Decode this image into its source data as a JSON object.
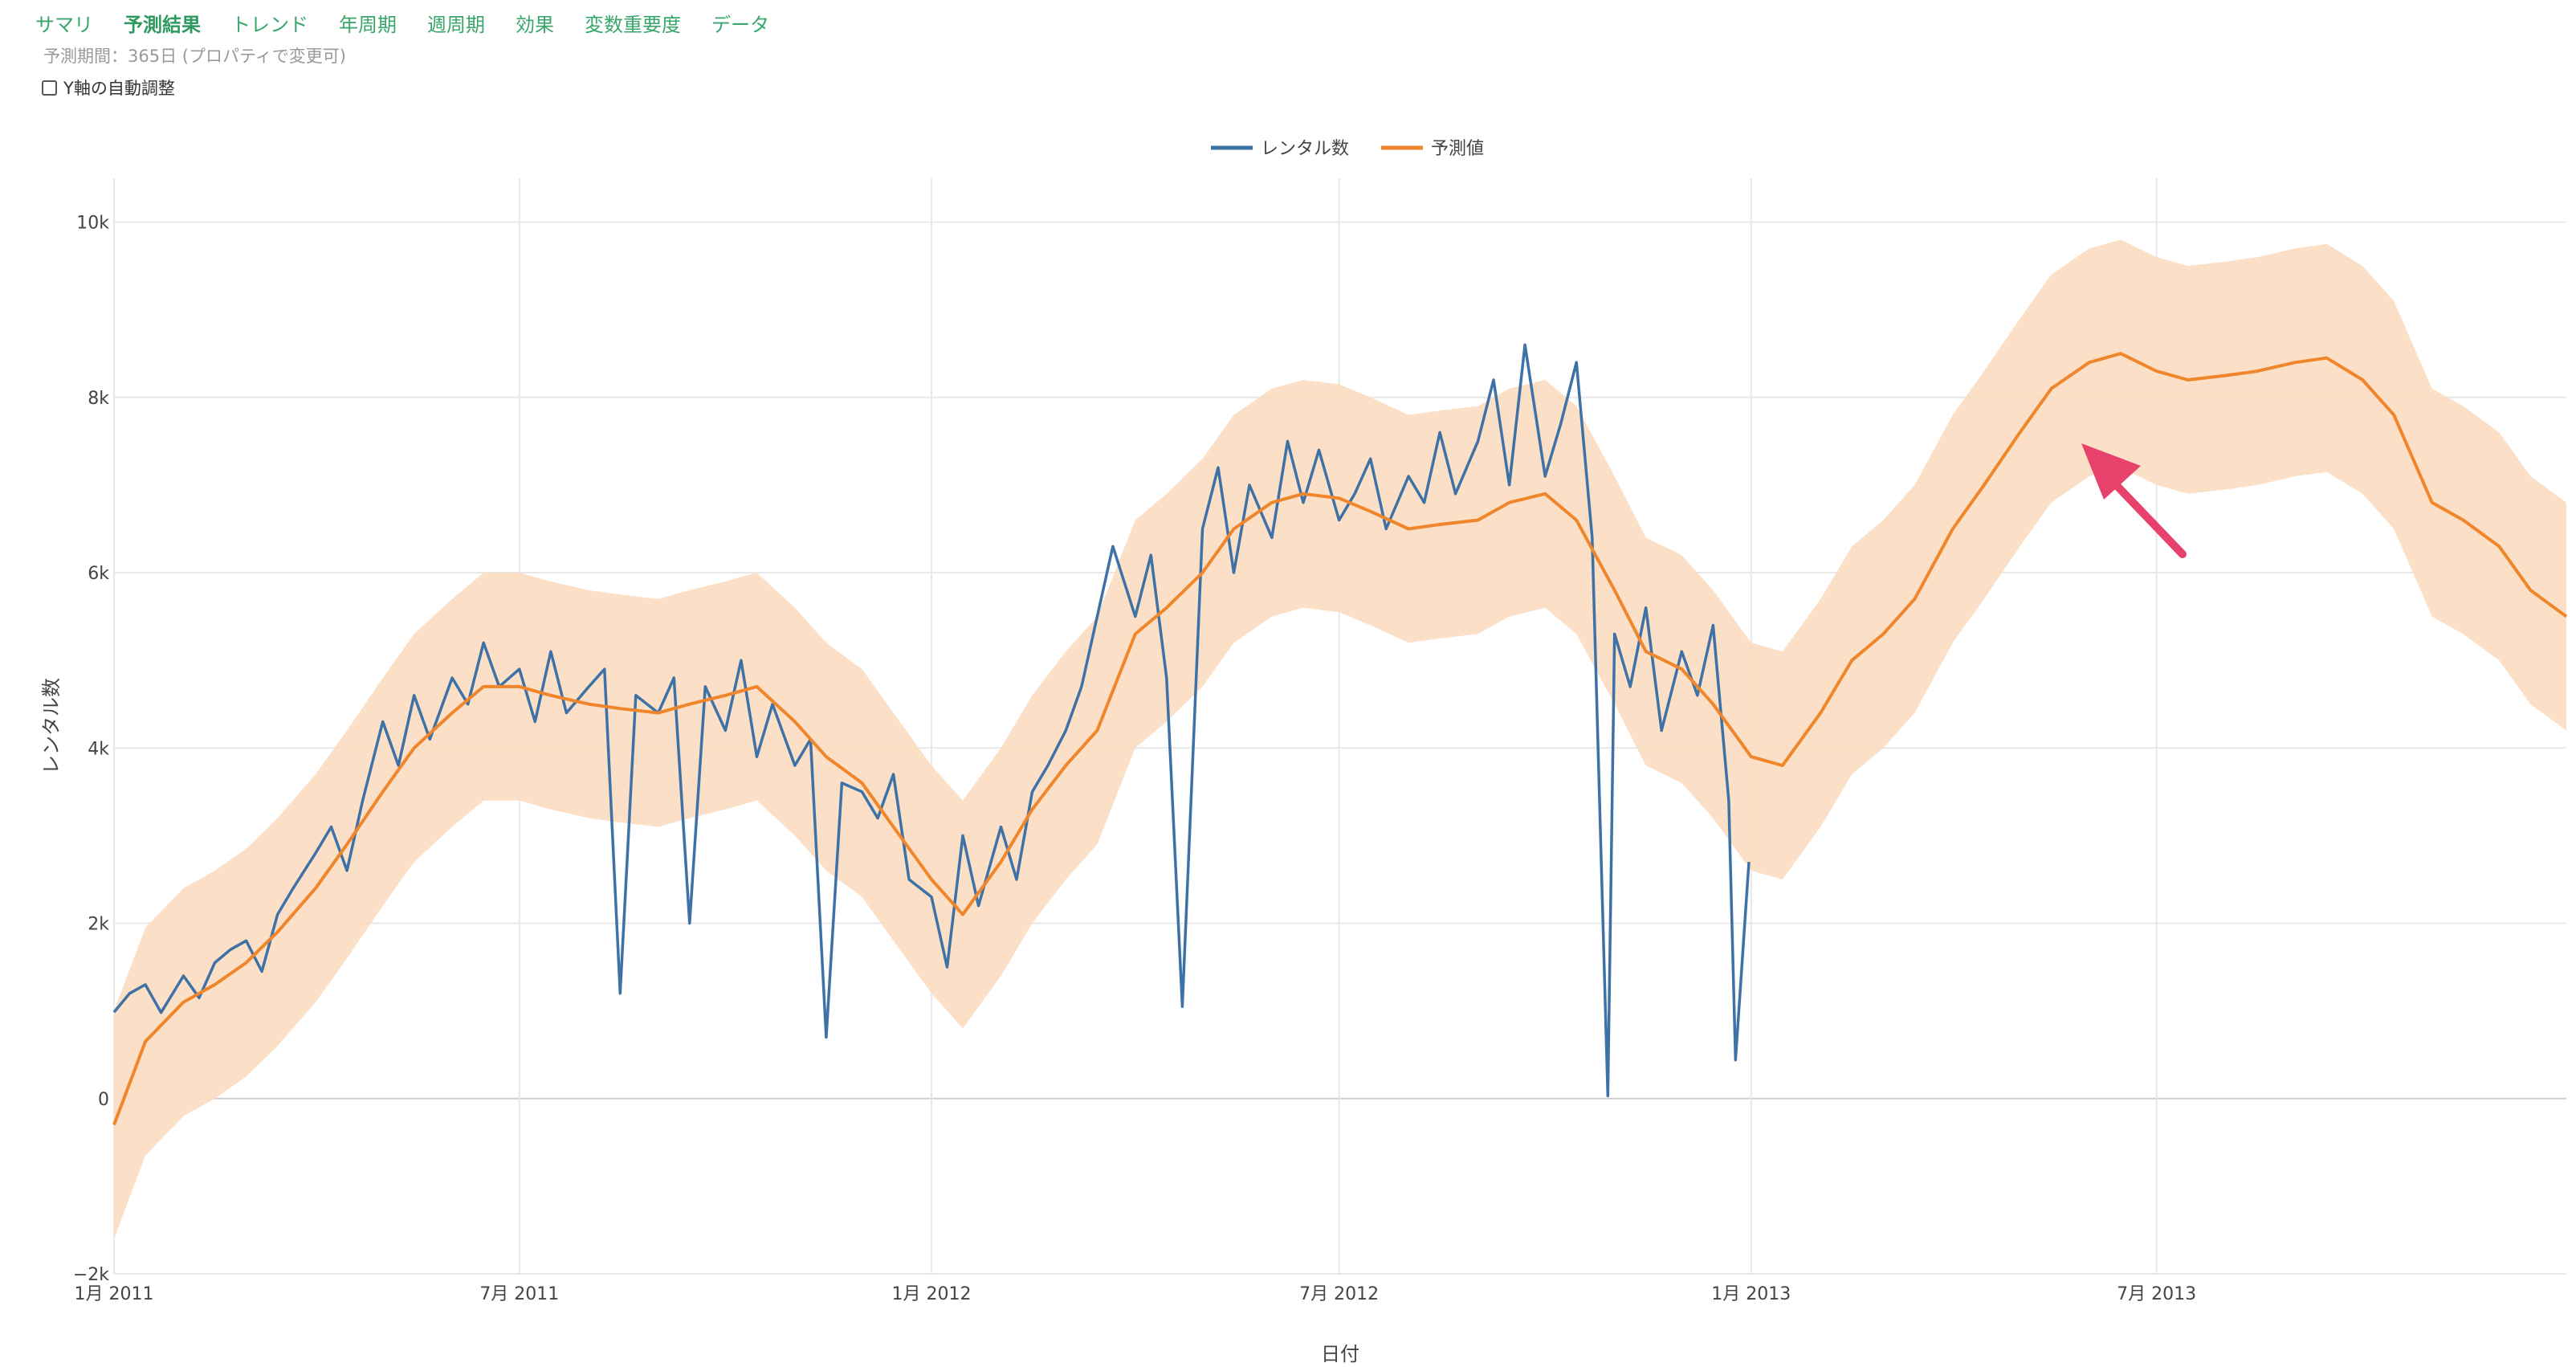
{
  "tabs": [
    {
      "label": "サマリ",
      "active": false
    },
    {
      "label": "予測結果",
      "active": true
    },
    {
      "label": "トレンド",
      "active": false
    },
    {
      "label": "年周期",
      "active": false
    },
    {
      "label": "週周期",
      "active": false
    },
    {
      "label": "効果",
      "active": false
    },
    {
      "label": "変数重要度",
      "active": false
    },
    {
      "label": "データ",
      "active": false
    }
  ],
  "note": "予測期間：365日 (プロパティで変更可)",
  "auto_y_label": "Y軸の自動調整",
  "colors": {
    "actual": "#3e72a6",
    "forecast": "#f0862c",
    "band": "#fbdcc0",
    "tab": "#39a66b",
    "arrow": "#e6426b",
    "grid": "#e8e8e8"
  },
  "chart_data": {
    "type": "line",
    "title": "",
    "xlabel": "日付",
    "ylabel": "レンタル数",
    "ylim": [
      -2000,
      10500
    ],
    "xlim": [
      "2011-01-01",
      "2013-12-31"
    ],
    "grid": true,
    "legend_position": "top-center",
    "x_ticks": [
      {
        "date": "2011-01-01",
        "label": "1月 2011"
      },
      {
        "date": "2011-07-01",
        "label": "7月 2011"
      },
      {
        "date": "2012-01-01",
        "label": "1月 2012"
      },
      {
        "date": "2012-07-01",
        "label": "7月 2012"
      },
      {
        "date": "2013-01-01",
        "label": "1月 2013"
      },
      {
        "date": "2013-07-01",
        "label": "7月 2013"
      }
    ],
    "y_ticks": [
      {
        "value": -2000,
        "label": "−2k"
      },
      {
        "value": 0,
        "label": "0"
      },
      {
        "value": 2000,
        "label": "2k"
      },
      {
        "value": 4000,
        "label": "4k"
      },
      {
        "value": 6000,
        "label": "6k"
      },
      {
        "value": 8000,
        "label": "8k"
      },
      {
        "value": 10000,
        "label": "10k"
      }
    ],
    "series": [
      {
        "name": "レンタル数",
        "color": "#3e72a6",
        "points": [
          [
            "2011-01-01",
            985
          ],
          [
            "2011-01-08",
            1200
          ],
          [
            "2011-01-15",
            1300
          ],
          [
            "2011-01-22",
            981
          ],
          [
            "2011-02-01",
            1400
          ],
          [
            "2011-02-08",
            1150
          ],
          [
            "2011-02-15",
            1550
          ],
          [
            "2011-02-22",
            1700
          ],
          [
            "2011-03-01",
            1800
          ],
          [
            "2011-03-08",
            1450
          ],
          [
            "2011-03-15",
            2100
          ],
          [
            "2011-03-22",
            2400
          ],
          [
            "2011-04-01",
            2800
          ],
          [
            "2011-04-08",
            3100
          ],
          [
            "2011-04-15",
            2600
          ],
          [
            "2011-04-22",
            3400
          ],
          [
            "2011-05-01",
            4300
          ],
          [
            "2011-05-08",
            3800
          ],
          [
            "2011-05-15",
            4600
          ],
          [
            "2011-05-22",
            4100
          ],
          [
            "2011-06-01",
            4800
          ],
          [
            "2011-06-08",
            4500
          ],
          [
            "2011-06-15",
            5200
          ],
          [
            "2011-06-22",
            4700
          ],
          [
            "2011-07-01",
            4900
          ],
          [
            "2011-07-08",
            4300
          ],
          [
            "2011-07-15",
            5100
          ],
          [
            "2011-07-22",
            4400
          ],
          [
            "2011-08-01",
            4700
          ],
          [
            "2011-08-08",
            4900
          ],
          [
            "2011-08-15",
            1200
          ],
          [
            "2011-08-22",
            4600
          ],
          [
            "2011-09-01",
            4400
          ],
          [
            "2011-09-08",
            4800
          ],
          [
            "2011-09-15",
            2000
          ],
          [
            "2011-09-22",
            4700
          ],
          [
            "2011-10-01",
            4200
          ],
          [
            "2011-10-08",
            5000
          ],
          [
            "2011-10-15",
            3900
          ],
          [
            "2011-10-22",
            4500
          ],
          [
            "2011-11-01",
            3800
          ],
          [
            "2011-11-08",
            4100
          ],
          [
            "2011-11-15",
            700
          ],
          [
            "2011-11-22",
            3600
          ],
          [
            "2011-12-01",
            3500
          ],
          [
            "2011-12-08",
            3200
          ],
          [
            "2011-12-15",
            3700
          ],
          [
            "2011-12-22",
            2500
          ],
          [
            "2012-01-01",
            2300
          ],
          [
            "2012-01-08",
            1500
          ],
          [
            "2012-01-15",
            3000
          ],
          [
            "2012-01-22",
            2200
          ],
          [
            "2012-02-01",
            3100
          ],
          [
            "2012-02-08",
            2500
          ],
          [
            "2012-02-15",
            3500
          ],
          [
            "2012-02-22",
            3800
          ],
          [
            "2012-03-01",
            4200
          ],
          [
            "2012-03-08",
            4700
          ],
          [
            "2012-03-15",
            5500
          ],
          [
            "2012-03-22",
            6300
          ],
          [
            "2012-04-01",
            5500
          ],
          [
            "2012-04-08",
            6200
          ],
          [
            "2012-04-15",
            4800
          ],
          [
            "2012-04-22",
            1050
          ],
          [
            "2012-05-01",
            6500
          ],
          [
            "2012-05-08",
            7200
          ],
          [
            "2012-05-15",
            6000
          ],
          [
            "2012-05-22",
            7000
          ],
          [
            "2012-06-01",
            6400
          ],
          [
            "2012-06-08",
            7500
          ],
          [
            "2012-06-15",
            6800
          ],
          [
            "2012-06-22",
            7400
          ],
          [
            "2012-07-01",
            6600
          ],
          [
            "2012-07-08",
            6900
          ],
          [
            "2012-07-15",
            7300
          ],
          [
            "2012-07-22",
            6500
          ],
          [
            "2012-08-01",
            7100
          ],
          [
            "2012-08-08",
            6800
          ],
          [
            "2012-08-15",
            7600
          ],
          [
            "2012-08-22",
            6900
          ],
          [
            "2012-09-01",
            7500
          ],
          [
            "2012-09-08",
            8200
          ],
          [
            "2012-09-15",
            7000
          ],
          [
            "2012-09-22",
            8600
          ],
          [
            "2012-10-01",
            7100
          ],
          [
            "2012-10-08",
            7700
          ],
          [
            "2012-10-15",
            8400
          ],
          [
            "2012-10-22",
            6400
          ],
          [
            "2012-10-29",
            30
          ],
          [
            "2012-11-01",
            5300
          ],
          [
            "2012-11-08",
            4700
          ],
          [
            "2012-11-15",
            5600
          ],
          [
            "2012-11-22",
            4200
          ],
          [
            "2012-12-01",
            5100
          ],
          [
            "2012-12-08",
            4600
          ],
          [
            "2012-12-15",
            5400
          ],
          [
            "2012-12-22",
            3400
          ],
          [
            "2012-12-25",
            440
          ],
          [
            "2012-12-31",
            2700
          ]
        ]
      },
      {
        "name": "予測値",
        "color": "#f0862c",
        "points": [
          [
            "2011-01-01",
            -300
          ],
          [
            "2011-01-15",
            650
          ],
          [
            "2011-02-01",
            1100
          ],
          [
            "2011-02-15",
            1300
          ],
          [
            "2011-03-01",
            1550
          ],
          [
            "2011-03-15",
            1900
          ],
          [
            "2011-04-01",
            2400
          ],
          [
            "2011-04-15",
            2900
          ],
          [
            "2011-05-01",
            3500
          ],
          [
            "2011-05-15",
            4000
          ],
          [
            "2011-06-01",
            4400
          ],
          [
            "2011-06-15",
            4700
          ],
          [
            "2011-07-01",
            4700
          ],
          [
            "2011-07-15",
            4600
          ],
          [
            "2011-08-01",
            4500
          ],
          [
            "2011-08-15",
            4450
          ],
          [
            "2011-09-01",
            4400
          ],
          [
            "2011-09-15",
            4500
          ],
          [
            "2011-10-01",
            4600
          ],
          [
            "2011-10-15",
            4700
          ],
          [
            "2011-11-01",
            4300
          ],
          [
            "2011-11-15",
            3900
          ],
          [
            "2011-12-01",
            3600
          ],
          [
            "2011-12-15",
            3100
          ],
          [
            "2012-01-01",
            2500
          ],
          [
            "2012-01-15",
            2100
          ],
          [
            "2012-02-01",
            2700
          ],
          [
            "2012-02-15",
            3300
          ],
          [
            "2012-03-01",
            3800
          ],
          [
            "2012-03-15",
            4200
          ],
          [
            "2012-04-01",
            5300
          ],
          [
            "2012-04-15",
            5600
          ],
          [
            "2012-05-01",
            6000
          ],
          [
            "2012-05-15",
            6500
          ],
          [
            "2012-06-01",
            6800
          ],
          [
            "2012-06-15",
            6900
          ],
          [
            "2012-07-01",
            6850
          ],
          [
            "2012-07-15",
            6700
          ],
          [
            "2012-08-01",
            6500
          ],
          [
            "2012-08-15",
            6550
          ],
          [
            "2012-09-01",
            6600
          ],
          [
            "2012-09-15",
            6800
          ],
          [
            "2012-10-01",
            6900
          ],
          [
            "2012-10-15",
            6600
          ],
          [
            "2012-11-01",
            5800
          ],
          [
            "2012-11-15",
            5100
          ],
          [
            "2012-12-01",
            4900
          ],
          [
            "2012-12-15",
            4500
          ],
          [
            "2013-01-01",
            3900
          ],
          [
            "2013-01-15",
            3800
          ],
          [
            "2013-02-01",
            4400
          ],
          [
            "2013-02-15",
            5000
          ],
          [
            "2013-03-01",
            5300
          ],
          [
            "2013-03-15",
            5700
          ],
          [
            "2013-04-01",
            6500
          ],
          [
            "2013-04-15",
            7000
          ],
          [
            "2013-05-01",
            7600
          ],
          [
            "2013-05-15",
            8100
          ],
          [
            "2013-06-01",
            8400
          ],
          [
            "2013-06-15",
            8500
          ],
          [
            "2013-07-01",
            8300
          ],
          [
            "2013-07-15",
            8200
          ],
          [
            "2013-08-01",
            8250
          ],
          [
            "2013-08-15",
            8300
          ],
          [
            "2013-09-01",
            8400
          ],
          [
            "2013-09-15",
            8450
          ],
          [
            "2013-10-01",
            8200
          ],
          [
            "2013-10-15",
            7800
          ],
          [
            "2013-11-01",
            6800
          ],
          [
            "2013-11-15",
            6600
          ],
          [
            "2013-12-01",
            6300
          ],
          [
            "2013-12-15",
            5800
          ],
          [
            "2013-12-31",
            5500
          ]
        ],
        "band_half_width": 1300
      }
    ]
  }
}
